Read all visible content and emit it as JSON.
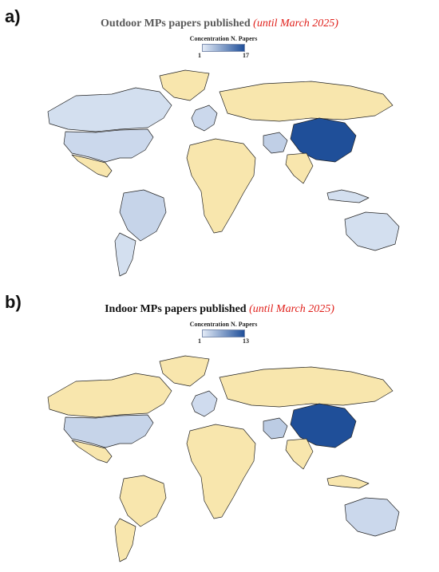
{
  "panels": [
    {
      "letter": "a)",
      "title": "Outdoor MPs papers published",
      "subtitle": "(until March 2025)",
      "legend_title": "Concentration N. Papers",
      "legend_min": "1",
      "legend_max": "17",
      "colors": {
        "low": "#e3ebf7",
        "high": "#1f4f99",
        "none": "#f8e6ad"
      },
      "countries": [
        {
          "name": "Canada",
          "level": 0.08
        },
        {
          "name": "USA",
          "level": 0.12
        },
        {
          "name": "Mexico",
          "level": 0.0
        },
        {
          "name": "Brazil",
          "level": 0.15
        },
        {
          "name": "Argentina",
          "level": 0.08
        },
        {
          "name": "Greenland",
          "level": 0.0
        },
        {
          "name": "Western Europe",
          "level": 0.12
        },
        {
          "name": "Russia",
          "level": 0.0
        },
        {
          "name": "Iran",
          "level": 0.18
        },
        {
          "name": "China",
          "level": 1.0
        },
        {
          "name": "India",
          "level": 0.0
        },
        {
          "name": "Indonesia",
          "level": 0.08
        },
        {
          "name": "Australia",
          "level": 0.08
        },
        {
          "name": "Africa",
          "level": 0.0
        }
      ]
    },
    {
      "letter": "b)",
      "title": "Indoor MPs papers published",
      "subtitle": "(until March 2025)",
      "legend_title": "Concentration N. Papers",
      "legend_min": "1",
      "legend_max": "13",
      "colors": {
        "low": "#e3ebf7",
        "high": "#1f4f99",
        "none": "#f8e6ad"
      },
      "countries": [
        {
          "name": "Canada",
          "level": 0.0
        },
        {
          "name": "USA",
          "level": 0.15
        },
        {
          "name": "Mexico",
          "level": 0.0
        },
        {
          "name": "Brazil",
          "level": 0.0
        },
        {
          "name": "Argentina",
          "level": 0.0
        },
        {
          "name": "Greenland",
          "level": 0.0
        },
        {
          "name": "Western Europe",
          "level": 0.1
        },
        {
          "name": "Russia",
          "level": 0.0
        },
        {
          "name": "Iran",
          "level": 0.2
        },
        {
          "name": "China",
          "level": 1.0
        },
        {
          "name": "India",
          "level": 0.0
        },
        {
          "name": "Indonesia",
          "level": 0.0
        },
        {
          "name": "Australia",
          "level": 0.12
        },
        {
          "name": "Africa",
          "level": 0.0
        }
      ]
    }
  ]
}
